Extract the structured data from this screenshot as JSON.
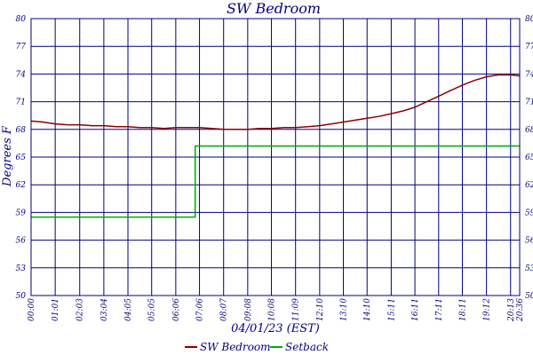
{
  "chart_data": {
    "type": "line",
    "title": "SW Bedroom",
    "ylabel": "Degrees F",
    "xlabel": "04/01/23 (EST)",
    "ylim": [
      50,
      80
    ],
    "yticks": [
      "50",
      "53",
      "56",
      "59",
      "62",
      "65",
      "68",
      "71",
      "74",
      "77",
      "80"
    ],
    "ytick_values": [
      50,
      53,
      56,
      59,
      62,
      65,
      68,
      71,
      74,
      77,
      80
    ],
    "xlim_minutes": [
      0,
      1236
    ],
    "xticks": [
      "00:00",
      "01:01",
      "02:03",
      "03:04",
      "04:05",
      "05:05",
      "06:06",
      "07:06",
      "08:07",
      "09:08",
      "10:08",
      "11:09",
      "12:10",
      "13:10",
      "14:10",
      "15:11",
      "16:11",
      "17:11",
      "18:11",
      "19:12",
      "20:13",
      "20:36"
    ],
    "xtick_minutes": [
      0,
      61,
      123,
      184,
      245,
      305,
      366,
      426,
      487,
      548,
      608,
      669,
      730,
      790,
      850,
      911,
      971,
      1031,
      1091,
      1152,
      1213,
      1236
    ],
    "grid": true,
    "legend_position": "bottom-center",
    "series": [
      {
        "name": "SW Bedroom",
        "color": "#8b0000",
        "x": [
          0,
          30,
          61,
          92,
          123,
          154,
          184,
          215,
          245,
          275,
          305,
          336,
          366,
          396,
          426,
          457,
          487,
          518,
          548,
          578,
          608,
          639,
          669,
          700,
          730,
          760,
          790,
          820,
          850,
          880,
          911,
          941,
          971,
          1001,
          1031,
          1061,
          1091,
          1121,
          1152,
          1182,
          1213,
          1236
        ],
        "y": [
          68.9,
          68.8,
          68.6,
          68.5,
          68.5,
          68.4,
          68.4,
          68.3,
          68.3,
          68.2,
          68.2,
          68.1,
          68.2,
          68.2,
          68.2,
          68.1,
          68.0,
          68.0,
          68.0,
          68.1,
          68.1,
          68.2,
          68.2,
          68.3,
          68.4,
          68.6,
          68.8,
          69.0,
          69.2,
          69.4,
          69.7,
          70.0,
          70.4,
          71.0,
          71.6,
          72.2,
          72.8,
          73.3,
          73.7,
          73.9,
          73.9,
          73.8
        ]
      },
      {
        "name": "Setback",
        "color": "#00aa00",
        "x": [
          0,
          415,
          415,
          1236
        ],
        "y": [
          58.5,
          58.5,
          66.2,
          66.2
        ]
      }
    ]
  }
}
